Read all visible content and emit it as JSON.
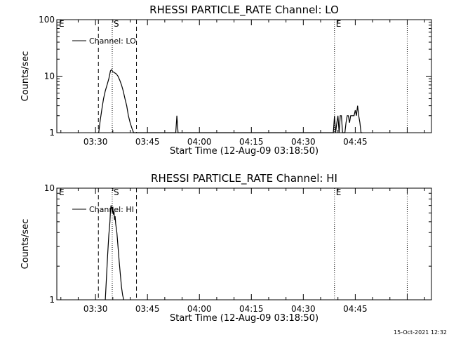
{
  "chart_data": [
    {
      "type": "line",
      "title": "RHESSI PARTICLE_RATE Channel: LO",
      "xlabel": "Start Time (12-Aug-09 03:18:50)",
      "ylabel": "Counts/sec",
      "yscale": "log",
      "ylim": [
        1,
        100
      ],
      "xlim": [
        "03:18:50",
        "05:07:00"
      ],
      "xticks": [
        "03:30",
        "03:45",
        "04:00",
        "04:15",
        "04:30",
        "04:45"
      ],
      "yticks": [
        "1",
        "10",
        "100"
      ],
      "legend": {
        "placement": "top-left",
        "entries": [
          "Channel: LO"
        ]
      },
      "markers": [
        {
          "label": "E",
          "time": "03:18:50",
          "style": "none"
        },
        {
          "label": "",
          "time": "03:30:50",
          "style": "dashed"
        },
        {
          "label": "S",
          "time": "03:34:50",
          "style": "dotted"
        },
        {
          "label": "",
          "time": "03:41:50",
          "style": "dashed"
        },
        {
          "label": "E",
          "time": "04:39:00",
          "style": "dotted"
        },
        {
          "label": "",
          "time": "05:00:00",
          "style": "dotted"
        }
      ],
      "series": [
        {
          "x": [
            "03:30:55",
            "03:31:20",
            "03:31:50",
            "03:32:20",
            "03:32:50",
            "03:33:20",
            "03:33:50",
            "03:34:20",
            "03:34:40",
            "03:35:00",
            "03:35:30",
            "03:36:00",
            "03:36:30",
            "03:37:00",
            "03:37:30",
            "03:38:00",
            "03:38:30",
            "03:39:00",
            "03:39:30",
            "03:40:00",
            "03:40:30",
            "03:41:00",
            "03:41:30",
            "03:53:10",
            "03:53:30",
            "03:53:50",
            "04:38:40",
            "04:39:00",
            "04:39:20",
            "04:39:40",
            "04:40:00",
            "04:40:20",
            "04:40:40",
            "04:41:00",
            "04:41:20",
            "04:41:40",
            "04:42:00",
            "04:42:20",
            "04:42:40",
            "04:43:00",
            "04:43:20",
            "04:43:40",
            "04:44:00",
            "04:44:20",
            "04:44:40",
            "04:45:00",
            "04:45:20",
            "04:45:40",
            "04:46:00",
            "04:46:20",
            "04:46:40",
            "04:47:00"
          ],
          "y": [
            1.0,
            1.6,
            2.6,
            4.0,
            5.5,
            7.0,
            9.0,
            12.5,
            13.0,
            12.0,
            11.5,
            11.0,
            10.0,
            8.5,
            7.0,
            5.5,
            4.0,
            3.0,
            2.0,
            1.5,
            1.2,
            1.0,
            1.0,
            1.0,
            2.0,
            1.0,
            1.0,
            2.0,
            1.0,
            1.5,
            2.0,
            1.0,
            2.0,
            2.0,
            1.0,
            1.0,
            1.0,
            1.5,
            2.0,
            2.0,
            1.5,
            2.0,
            2.0,
            2.0,
            2.0,
            2.5,
            2.0,
            3.0,
            2.0,
            1.5,
            1.0,
            1.0
          ]
        }
      ]
    },
    {
      "type": "line",
      "title": "RHESSI PARTICLE_RATE Channel: HI",
      "xlabel": "Start Time (12-Aug-09 03:18:50)",
      "ylabel": "Counts/sec",
      "yscale": "log",
      "ylim": [
        1,
        10
      ],
      "xlim": [
        "03:18:50",
        "05:07:00"
      ],
      "xticks": [
        "03:30",
        "03:45",
        "04:00",
        "04:15",
        "04:30",
        "04:45"
      ],
      "yticks": [
        "1",
        "10"
      ],
      "legend": {
        "placement": "top-left",
        "entries": [
          "Channel: HI"
        ]
      },
      "markers": [
        {
          "label": "E",
          "time": "03:18:50",
          "style": "none"
        },
        {
          "label": "",
          "time": "03:30:50",
          "style": "dashed"
        },
        {
          "label": "S",
          "time": "03:34:50",
          "style": "dotted"
        },
        {
          "label": "",
          "time": "03:41:50",
          "style": "dashed"
        },
        {
          "label": "E",
          "time": "04:39:00",
          "style": "dotted"
        },
        {
          "label": "",
          "time": "05:00:00",
          "style": "dotted"
        }
      ],
      "series": [
        {
          "x": [
            "03:32:50",
            "03:33:10",
            "03:33:30",
            "03:33:50",
            "03:34:10",
            "03:34:20",
            "03:34:30",
            "03:34:40",
            "03:34:50",
            "03:35:00",
            "03:35:10",
            "03:35:20",
            "03:35:30",
            "03:35:40",
            "03:35:50",
            "03:36:10",
            "03:36:30",
            "03:36:50",
            "03:37:10",
            "03:37:30",
            "03:37:50",
            "03:38:10"
          ],
          "y": [
            1.0,
            1.6,
            2.5,
            3.8,
            5.0,
            6.4,
            7.0,
            6.6,
            6.0,
            6.8,
            5.8,
            6.2,
            5.2,
            5.6,
            4.8,
            4.0,
            3.0,
            2.2,
            1.7,
            1.3,
            1.1,
            1.0
          ]
        }
      ]
    }
  ],
  "timestamp": "15-Oct-2021 12:32"
}
